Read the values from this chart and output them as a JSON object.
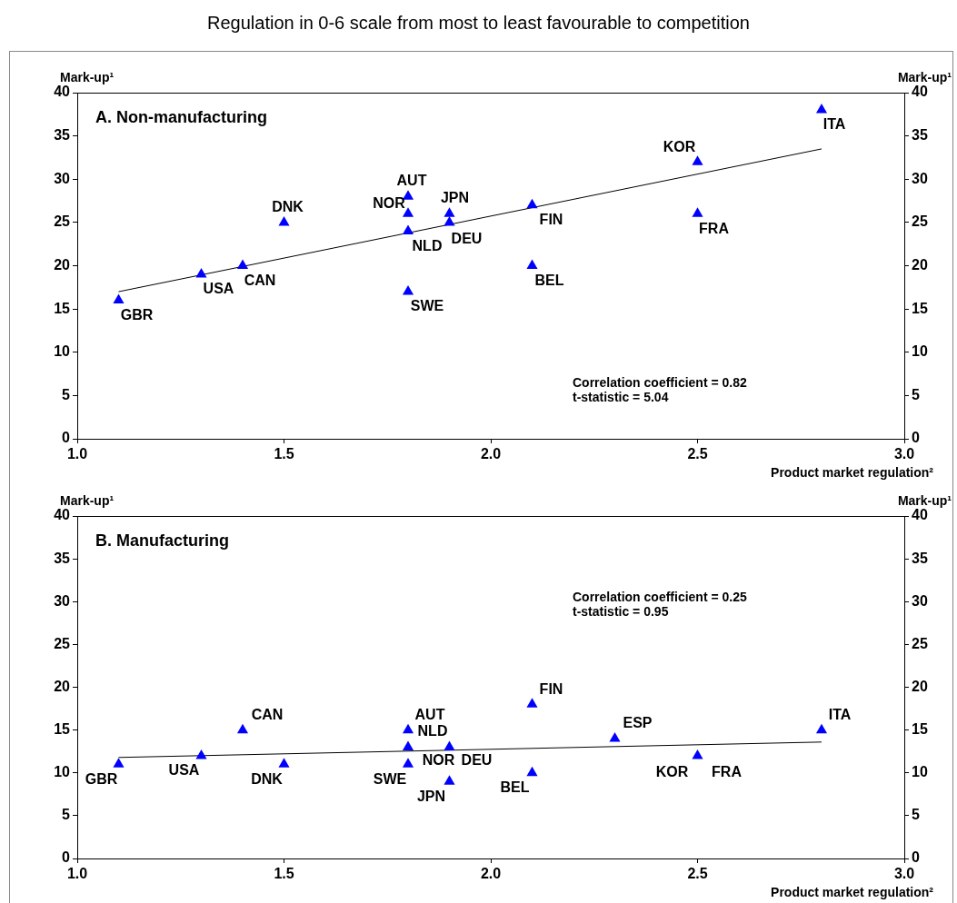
{
  "chart_data": [
    {
      "type": "scatter",
      "subtitle": "Regulation in 0-6 scale from most to least favourable to competition",
      "title": "A. Non-manufacturing",
      "xlabel": "Product market regulation²",
      "ylabel": "Mark-up¹",
      "y2label": "Mark-up¹",
      "series": [
        {
          "color": "#0000ff",
          "x": [
            1.1,
            1.3,
            1.4,
            1.5,
            1.8,
            1.8,
            1.8,
            1.8,
            1.9,
            1.9,
            2.1,
            2.1,
            2.5,
            2.5,
            2.8
          ],
          "values": [
            16,
            19,
            20,
            25,
            28,
            26,
            24,
            17,
            26,
            25,
            27,
            20,
            26,
            32,
            38
          ]
        },
        {
          "type": "line",
          "color": "#000000",
          "marker": "none",
          "x": [
            1.1,
            2.8
          ],
          "values": [
            17.0,
            33.5
          ]
        }
      ],
      "xlim": [
        1,
        3
      ],
      "xticks": [
        {
          "value": 1,
          "label": "1.0"
        },
        {
          "value": 1.5,
          "label": "1.5"
        },
        {
          "value": 2,
          "label": "2.0"
        },
        {
          "value": 2.5,
          "label": "2.5"
        },
        {
          "value": 3,
          "label": "3.0"
        }
      ],
      "ylim": [
        0,
        40
      ],
      "yticks": [
        0,
        5,
        10,
        15,
        20,
        25,
        30,
        35,
        40
      ],
      "y2lim": [
        0,
        40
      ],
      "y2ticks": [
        0,
        5,
        10,
        15,
        20,
        25,
        30,
        35,
        40
      ],
      "marker": "triangle",
      "grid": false,
      "legend": false,
      "annotations": [
        {
          "text": "GBR",
          "x": 1.1,
          "y": 16
        },
        {
          "text": "USA",
          "x": 1.3,
          "y": 19
        },
        {
          "text": "CAN",
          "x": 1.4,
          "y": 20
        },
        {
          "text": "DNK",
          "x": 1.5,
          "y": 25
        },
        {
          "text": "AUT",
          "x": 1.8,
          "y": 28
        },
        {
          "text": "NOR",
          "x": 1.8,
          "y": 26
        },
        {
          "text": "NLD",
          "x": 1.8,
          "y": 24
        },
        {
          "text": "SWE",
          "x": 1.8,
          "y": 17
        },
        {
          "text": "JPN",
          "x": 1.9,
          "y": 26
        },
        {
          "text": "DEU",
          "x": 1.9,
          "y": 25
        },
        {
          "text": "FIN",
          "x": 2.1,
          "y": 27
        },
        {
          "text": "BEL",
          "x": 2.1,
          "y": 20
        },
        {
          "text": "FRA",
          "x": 2.5,
          "y": 26
        },
        {
          "text": "KOR",
          "x": 2.5,
          "y": 32
        },
        {
          "text": "ITA",
          "x": 2.8,
          "y": 38
        },
        "Correlation coefficient = 0.82",
        "t-statistic = 5.04"
      ]
    },
    {
      "type": "scatter",
      "title": "B. Manufacturing",
      "xlabel": "Product market regulation²",
      "ylabel": "Mark-up¹",
      "y2label": "Mark-up¹",
      "series": [
        {
          "color": "#0000ff",
          "x": [
            1.1,
            1.3,
            1.4,
            1.5,
            1.8,
            1.8,
            1.8,
            1.9,
            1.9,
            2.1,
            2.1,
            2.3,
            2.5,
            2.8
          ],
          "values": [
            11,
            12,
            15,
            11,
            15,
            13,
            11,
            13,
            9,
            10,
            18,
            14,
            12,
            15
          ]
        },
        {
          "type": "line",
          "color": "#000000",
          "marker": "none",
          "x": [
            1.1,
            2.8
          ],
          "values": [
            11.8,
            13.6
          ]
        }
      ],
      "xlim": [
        1,
        3
      ],
      "xticks": [
        {
          "value": 1,
          "label": "1.0"
        },
        {
          "value": 1.5,
          "label": "1.5"
        },
        {
          "value": 2,
          "label": "2.0"
        },
        {
          "value": 2.5,
          "label": "2.5"
        },
        {
          "value": 3,
          "label": "3.0"
        }
      ],
      "ylim": [
        0,
        40
      ],
      "yticks": [
        0,
        5,
        10,
        15,
        20,
        25,
        30,
        35,
        40
      ],
      "y2lim": [
        0,
        40
      ],
      "y2ticks": [
        0,
        5,
        10,
        15,
        20,
        25,
        30,
        35,
        40
      ],
      "marker": "triangle",
      "grid": false,
      "legend": false,
      "annotations": [
        {
          "text": "GBR",
          "x": 1.1,
          "y": 11
        },
        {
          "text": "USA",
          "x": 1.3,
          "y": 12
        },
        {
          "text": "CAN",
          "x": 1.4,
          "y": 15
        },
        {
          "text": "DNK",
          "x": 1.5,
          "y": 11
        },
        {
          "text": "AUT",
          "x": 1.8,
          "y": 15
        },
        {
          "text": "NLD",
          "x": 1.8,
          "y": 13
        },
        {
          "text": "SWE",
          "x": 1.8,
          "y": 11
        },
        {
          "text": "NOR",
          "x": 1.9,
          "y": 13
        },
        {
          "text": "DEU",
          "x": 1.9,
          "y": 13
        },
        {
          "text": "JPN",
          "x": 1.9,
          "y": 9
        },
        {
          "text": "BEL",
          "x": 2.1,
          "y": 10
        },
        {
          "text": "FIN",
          "x": 2.1,
          "y": 18
        },
        {
          "text": "ESP",
          "x": 2.3,
          "y": 14
        },
        {
          "text": "KOR",
          "x": 2.5,
          "y": 12
        },
        {
          "text": "FRA",
          "x": 2.5,
          "y": 12
        },
        {
          "text": "ITA",
          "x": 2.8,
          "y": 15
        },
        "Correlation coefficient = 0.25",
        "t-statistic = 0.95"
      ]
    }
  ]
}
